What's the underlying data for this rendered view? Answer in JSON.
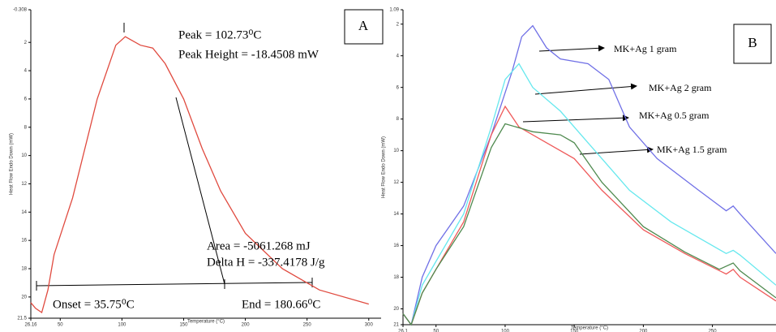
{
  "chart_data": [
    {
      "type": "line",
      "panel": "A",
      "x_label": "Temperature (°C)",
      "y_label": "Heat Flow Endo Down (mW)",
      "xlim": [
        26.16,
        310
      ],
      "xticks": [
        26.16,
        50,
        100,
        150,
        200,
        250,
        300
      ],
      "ylim": [
        -0.308,
        21.5
      ],
      "yticks": [
        -0.308,
        2,
        4,
        6,
        8,
        10,
        12,
        14,
        16,
        18,
        20,
        21.5
      ],
      "y_inverted": true,
      "series": [
        {
          "color": "#e04a3f",
          "x": [
            26.16,
            30,
            35,
            40,
            45,
            60,
            80,
            95,
            102.73,
            115,
            125,
            135,
            150,
            165,
            180,
            200,
            230,
            260,
            300
          ],
          "values": [
            20.4,
            20.8,
            21.1,
            19.5,
            17,
            13,
            6,
            2.2,
            1.6,
            2.2,
            2.4,
            3.5,
            6,
            9.5,
            12.5,
            15.5,
            18,
            19.5,
            20.5
          ]
        }
      ],
      "annotations": [
        "Peak = 102.73⁰C",
        "Peak Height = -18.4508 mW",
        "Area = -5061.268 mJ",
        "Delta H = -337.4178 J/g",
        "Onset = 35.75⁰C",
        "End = 180.66⁰C"
      ]
    },
    {
      "type": "line",
      "panel": "B",
      "x_label": "Temperature (°C)",
      "y_label": "Heat Flow Endo Down (mW)",
      "xlim": [
        26.1,
        296
      ],
      "xticks": [
        26.1,
        50,
        100,
        150,
        200,
        250
      ],
      "ylim": [
        1.09,
        21
      ],
      "yticks": [
        1.09,
        2,
        4,
        6,
        8,
        10,
        12,
        14,
        16,
        18,
        20,
        21
      ],
      "y_inverted": true,
      "series": [
        {
          "name": "MK+Ag 1 gram",
          "color": "#7070e6",
          "x": [
            26.1,
            32,
            40,
            50,
            70,
            90,
            105,
            112,
            120,
            130,
            140,
            160,
            175,
            190,
            210,
            240,
            260,
            265,
            270,
            296
          ],
          "values": [
            20.3,
            21,
            18,
            16,
            13.5,
            9,
            5,
            2.8,
            2.1,
            3.5,
            4.2,
            4.5,
            5.5,
            8.5,
            10.5,
            12.5,
            13.8,
            13.5,
            14,
            16.5
          ]
        },
        {
          "name": "MK+Ag 2 gram",
          "color": "#66e8ee",
          "x": [
            26.1,
            32,
            40,
            50,
            70,
            90,
            100,
            110,
            120,
            140,
            160,
            190,
            220,
            250,
            260,
            265,
            270,
            296
          ],
          "values": [
            20.3,
            21,
            18.5,
            17,
            14,
            8.5,
            5.5,
            4.5,
            6,
            7.5,
            9.5,
            12.5,
            14.5,
            16,
            16.5,
            16.3,
            16.6,
            18.5
          ]
        },
        {
          "name": "MK+Ag 0.5 gram",
          "color": "#ef5a5a",
          "x": [
            26.1,
            32,
            40,
            50,
            70,
            90,
            100,
            110,
            130,
            150,
            170,
            200,
            230,
            260,
            265,
            270,
            296
          ],
          "values": [
            20.3,
            21,
            19,
            17.5,
            14.5,
            9,
            7.2,
            8.5,
            9.5,
            10.5,
            12.5,
            15,
            16.5,
            17.8,
            17.5,
            18,
            19.5
          ]
        },
        {
          "name": "MK+Ag 1.5 gram",
          "color": "#4f8a4f",
          "x": [
            26.1,
            32,
            40,
            50,
            70,
            90,
            100,
            120,
            140,
            150,
            170,
            200,
            230,
            255,
            265,
            270,
            296
          ],
          "values": [
            20.3,
            21,
            19,
            17.5,
            14.8,
            9.8,
            8.3,
            8.8,
            9,
            9.5,
            12,
            14.8,
            16.4,
            17.5,
            17.1,
            17.6,
            19.3
          ]
        }
      ]
    }
  ]
}
